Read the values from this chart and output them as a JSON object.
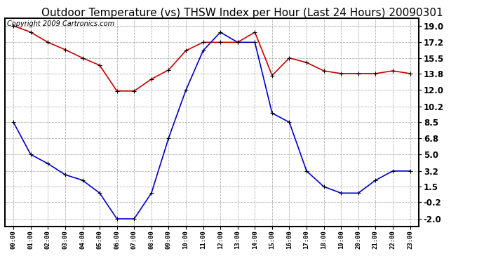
{
  "title": "Outdoor Temperature (vs) THSW Index per Hour (Last 24 Hours) 20090301",
  "copyright": "Copyright 2009 Cartronics.com",
  "hours": [
    "00:00",
    "01:00",
    "02:00",
    "03:00",
    "04:00",
    "05:00",
    "06:00",
    "07:00",
    "08:00",
    "09:00",
    "10:00",
    "11:00",
    "12:00",
    "13:00",
    "14:00",
    "15:00",
    "16:00",
    "17:00",
    "18:00",
    "19:00",
    "20:00",
    "21:00",
    "22:00",
    "23:00"
  ],
  "temp_red": [
    19.0,
    18.3,
    17.2,
    16.4,
    15.5,
    14.7,
    11.9,
    11.9,
    13.2,
    14.2,
    16.3,
    17.2,
    17.2,
    17.2,
    18.3,
    13.6,
    15.5,
    15.0,
    14.1,
    13.8,
    13.8,
    13.8,
    14.1,
    13.8
  ],
  "thsw_blue": [
    8.5,
    5.0,
    4.0,
    2.8,
    2.2,
    0.8,
    -2.0,
    -2.0,
    0.8,
    6.8,
    12.0,
    16.3,
    18.3,
    17.2,
    17.2,
    9.5,
    8.5,
    3.2,
    1.5,
    0.8,
    0.8,
    2.2,
    3.2,
    3.2
  ],
  "y_ticks": [
    19.0,
    17.2,
    15.5,
    13.8,
    12.0,
    10.2,
    8.5,
    6.8,
    5.0,
    3.2,
    1.5,
    -0.2,
    -2.0
  ],
  "ylim": [
    -2.8,
    19.8
  ],
  "red_color": "#cc0000",
  "blue_color": "#0000cc",
  "grid_color": "#aaaaaa",
  "bg_color": "#ffffff",
  "title_fontsize": 11,
  "copyright_fontsize": 7
}
